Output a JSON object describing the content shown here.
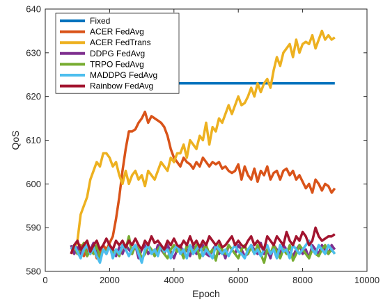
{
  "chart_data": {
    "type": "line",
    "xlabel": "Epoch",
    "ylabel": "QoS",
    "xlim": [
      0,
      10000
    ],
    "ylim": [
      580,
      640
    ],
    "xticks": [
      0,
      2000,
      4000,
      6000,
      8000,
      10000
    ],
    "yticks": [
      580,
      590,
      600,
      610,
      620,
      630,
      640
    ],
    "grid": false,
    "legend_position": "top-left",
    "series": [
      {
        "name": "Fixed",
        "color": "#0072BD",
        "x": [
          4000,
          9000
        ],
        "y": [
          623,
          623
        ]
      },
      {
        "name": "ACER FedAvg",
        "color": "#D95319",
        "x": [
          800,
          900,
          1000,
          1100,
          1200,
          1300,
          1400,
          1500,
          1600,
          1700,
          1800,
          1900,
          2000,
          2100,
          2200,
          2300,
          2400,
          2500,
          2600,
          2700,
          2800,
          2900,
          3000,
          3100,
          3200,
          3300,
          3400,
          3500,
          3600,
          3700,
          3800,
          3900,
          4000,
          4100,
          4200,
          4300,
          4400,
          4500,
          4600,
          4700,
          4800,
          4900,
          5000,
          5100,
          5200,
          5300,
          5400,
          5500,
          5600,
          5700,
          5800,
          5900,
          6000,
          6100,
          6200,
          6300,
          6400,
          6500,
          6600,
          6700,
          6800,
          6900,
          7000,
          7100,
          7200,
          7300,
          7400,
          7500,
          7600,
          7700,
          7800,
          7900,
          8000,
          8100,
          8200,
          8300,
          8400,
          8500,
          8600,
          8700,
          8800,
          8900,
          9000
        ],
        "y": [
          584,
          585.5,
          584,
          586,
          583.5,
          585,
          584,
          586,
          583,
          584.5,
          586,
          585,
          586.5,
          588,
          592,
          597,
          603,
          608,
          612,
          612,
          612.5,
          614,
          615,
          616.5,
          614,
          615.5,
          615,
          614.5,
          614,
          613,
          611,
          608,
          606,
          605,
          604,
          606,
          605,
          604.5,
          603.5,
          605,
          604,
          606,
          605,
          604,
          605,
          604.5,
          605,
          603.5,
          604,
          603,
          602.5,
          603,
          604.5,
          601,
          604,
          602,
          601,
          603.5,
          600.5,
          603,
          602,
          604,
          601,
          602.5,
          603,
          601,
          603,
          603.5,
          602,
          603,
          601,
          602,
          600.5,
          599,
          600,
          598,
          601,
          600,
          598.5,
          600,
          599.5,
          598,
          599
        ]
      },
      {
        "name": "ACER FedTrans",
        "color": "#EDB120",
        "x": [
          800,
          900,
          1000,
          1100,
          1200,
          1300,
          1400,
          1500,
          1600,
          1700,
          1800,
          1900,
          2000,
          2100,
          2200,
          2300,
          2400,
          2500,
          2600,
          2700,
          2800,
          2900,
          3000,
          3100,
          3200,
          3300,
          3400,
          3500,
          3600,
          3700,
          3800,
          3900,
          4000,
          4100,
          4200,
          4300,
          4400,
          4500,
          4600,
          4700,
          4800,
          4900,
          5000,
          5100,
          5200,
          5300,
          5400,
          5500,
          5600,
          5700,
          5800,
          5900,
          6000,
          6100,
          6200,
          6300,
          6400,
          6500,
          6600,
          6700,
          6800,
          6900,
          7000,
          7100,
          7200,
          7300,
          7400,
          7500,
          7600,
          7700,
          7800,
          7900,
          8000,
          8100,
          8200,
          8300,
          8400,
          8500,
          8600,
          8700,
          8800,
          8900,
          9000
        ],
        "y": [
          584,
          585,
          587,
          593,
          595,
          597,
          601,
          603,
          605,
          604,
          607,
          607,
          606,
          604,
          605,
          602,
          600,
          603,
          600,
          602,
          603,
          601,
          602,
          599.5,
          603,
          602,
          601,
          603,
          605,
          604,
          603,
          606,
          605,
          607,
          607,
          609,
          606,
          610,
          609,
          608,
          611,
          610,
          614,
          609,
          613,
          612,
          615,
          614,
          616,
          618,
          616,
          618,
          620,
          618,
          618.5,
          620,
          622,
          620,
          623,
          621,
          623,
          624,
          622,
          626,
          629,
          627,
          630,
          631,
          632,
          629,
          633,
          630,
          632,
          632.5,
          632,
          634,
          631,
          633,
          635,
          633,
          634,
          633,
          633.5
        ]
      },
      {
        "name": "DDPG FedAvg",
        "color": "#7E2F8E",
        "x": [
          800,
          900,
          1000,
          1100,
          1200,
          1300,
          1400,
          1500,
          1600,
          1700,
          1800,
          1900,
          2000,
          2100,
          2200,
          2300,
          2400,
          2500,
          2600,
          2700,
          2800,
          2900,
          3000,
          3100,
          3200,
          3300,
          3400,
          3500,
          3600,
          3700,
          3800,
          3900,
          4000,
          4100,
          4200,
          4300,
          4400,
          4500,
          4600,
          4700,
          4800,
          4900,
          5000,
          5100,
          5200,
          5300,
          5400,
          5500,
          5600,
          5700,
          5800,
          5900,
          6000,
          6100,
          6200,
          6300,
          6400,
          6500,
          6600,
          6700,
          6800,
          6900,
          7000,
          7100,
          7200,
          7300,
          7400,
          7500,
          7600,
          7700,
          7800,
          7900,
          8000,
          8100,
          8200,
          8300,
          8400,
          8500,
          8600,
          8700,
          8800,
          8900,
          9000
        ],
        "y": [
          586,
          584,
          585.5,
          584,
          586,
          583.5,
          585,
          586.5,
          584,
          583,
          585,
          584,
          586,
          585,
          583.5,
          585.5,
          584,
          586,
          585,
          584,
          586,
          583,
          585,
          586,
          584,
          585,
          583.5,
          586,
          585,
          584,
          586,
          584.5,
          583,
          585,
          586,
          584,
          585,
          583.5,
          586,
          584,
          585,
          586,
          584,
          583.5,
          585,
          586,
          584,
          585,
          583,
          586,
          585,
          584,
          586,
          585,
          583.5,
          584,
          586,
          585,
          584,
          586.5,
          584,
          585,
          583,
          586,
          585,
          584,
          586,
          585,
          584,
          583.5,
          585,
          586,
          584,
          585,
          583,
          586,
          585,
          584,
          586,
          585,
          584,
          586,
          585
        ]
      },
      {
        "name": "TRPO FedAvg",
        "color": "#77AC30",
        "x": [
          800,
          900,
          1000,
          1100,
          1200,
          1300,
          1400,
          1500,
          1600,
          1700,
          1800,
          1900,
          2000,
          2100,
          2200,
          2300,
          2400,
          2500,
          2600,
          2700,
          2800,
          2900,
          3000,
          3100,
          3200,
          3300,
          3400,
          3500,
          3600,
          3700,
          3800,
          3900,
          4000,
          4100,
          4200,
          4300,
          4400,
          4500,
          4600,
          4700,
          4800,
          4900,
          5000,
          5100,
          5200,
          5300,
          5400,
          5500,
          5600,
          5700,
          5800,
          5900,
          6000,
          6100,
          6200,
          6300,
          6400,
          6500,
          6600,
          6700,
          6800,
          6900,
          7000,
          7100,
          7200,
          7300,
          7400,
          7500,
          7600,
          7700,
          7800,
          7900,
          8000,
          8100,
          8200,
          8300,
          8400,
          8500,
          8600,
          8700,
          8800,
          8900,
          9000
        ],
        "y": [
          585,
          586,
          584,
          585,
          586.5,
          583.5,
          585,
          584,
          586,
          583,
          585,
          584.5,
          586,
          584,
          585,
          583.5,
          586,
          585,
          588,
          584,
          586,
          585,
          583,
          584,
          586,
          585,
          583.5,
          585,
          586,
          584,
          583,
          585,
          586,
          584.5,
          585,
          583,
          586,
          585,
          584,
          586,
          583,
          585,
          586,
          584,
          585,
          582.5,
          586,
          585,
          584,
          586,
          585,
          584,
          583,
          585,
          586,
          584,
          585.5,
          584,
          586,
          584,
          582,
          585,
          584,
          586,
          584.5,
          583,
          585,
          584,
          586,
          582.5,
          584,
          586,
          585,
          584,
          583,
          585,
          584,
          583.5,
          585,
          586,
          584,
          585,
          584
        ]
      },
      {
        "name": "MADDPG FedAvg",
        "color": "#4DBEEE",
        "x": [
          800,
          900,
          1000,
          1100,
          1200,
          1300,
          1400,
          1500,
          1600,
          1700,
          1800,
          1900,
          2000,
          2100,
          2200,
          2300,
          2400,
          2500,
          2600,
          2700,
          2800,
          2900,
          3000,
          3100,
          3200,
          3300,
          3400,
          3500,
          3600,
          3700,
          3800,
          3900,
          4000,
          4100,
          4200,
          4300,
          4400,
          4500,
          4600,
          4700,
          4800,
          4900,
          5000,
          5100,
          5200,
          5300,
          5400,
          5500,
          5600,
          5700,
          5800,
          5900,
          6000,
          6100,
          6200,
          6300,
          6400,
          6500,
          6600,
          6700,
          6800,
          6900,
          7000,
          7100,
          7200,
          7300,
          7400,
          7500,
          7600,
          7700,
          7800,
          7900,
          8000,
          8100,
          8200,
          8300,
          8400,
          8500,
          8600,
          8700,
          8800,
          8900,
          9000
        ],
        "y": [
          585,
          586,
          584.5,
          583,
          585,
          586,
          584,
          585.5,
          583.5,
          582,
          585,
          584,
          586,
          583,
          585,
          584,
          586,
          585,
          583.5,
          585,
          586,
          584,
          582,
          585,
          586,
          584,
          585,
          583.5,
          586,
          584.5,
          585,
          583,
          585,
          586,
          584,
          585,
          583,
          586,
          584,
          585,
          586,
          583.5,
          585,
          584,
          583,
          586,
          585,
          584,
          585,
          583.5,
          585,
          586,
          584.5,
          584,
          583,
          585,
          586,
          584,
          585,
          583.5,
          585,
          586,
          584,
          585,
          583,
          586,
          584.5,
          585,
          583,
          586,
          585,
          584,
          585,
          586,
          587,
          585,
          584,
          586,
          585,
          584,
          586,
          585,
          584
        ]
      },
      {
        "name": "Rainbow FedAvg",
        "color": "#A2142F",
        "x": [
          800,
          900,
          1000,
          1100,
          1200,
          1300,
          1400,
          1500,
          1600,
          1700,
          1800,
          1900,
          2000,
          2100,
          2200,
          2300,
          2400,
          2500,
          2600,
          2700,
          2800,
          2900,
          3000,
          3100,
          3200,
          3300,
          3400,
          3500,
          3600,
          3700,
          3800,
          3900,
          4000,
          4100,
          4200,
          4300,
          4400,
          4500,
          4600,
          4700,
          4800,
          4900,
          5000,
          5100,
          5200,
          5300,
          5400,
          5500,
          5600,
          5700,
          5800,
          5900,
          6000,
          6100,
          6200,
          6300,
          6400,
          6500,
          6600,
          6700,
          6800,
          6900,
          7000,
          7100,
          7200,
          7300,
          7400,
          7500,
          7600,
          7700,
          7800,
          7900,
          8000,
          8100,
          8200,
          8300,
          8400,
          8500,
          8600,
          8700,
          8800,
          8900,
          9000
        ],
        "y": [
          584,
          586,
          587,
          585,
          586,
          587,
          584.5,
          586,
          587,
          585,
          586,
          587.5,
          586,
          585,
          587,
          586,
          587,
          585.5,
          587,
          586,
          587.5,
          586,
          585,
          587,
          586,
          588,
          586.5,
          587,
          586,
          585,
          587,
          586,
          587.5,
          586,
          585.5,
          587,
          586,
          588,
          586,
          587,
          585.5,
          587,
          586,
          588,
          587,
          586,
          587,
          585.5,
          586,
          587,
          588,
          586,
          587,
          586,
          585.5,
          587,
          588,
          586,
          587,
          586,
          585,
          588,
          587,
          586,
          588,
          587,
          586,
          589,
          587,
          586,
          588,
          587,
          589,
          588,
          586,
          587,
          590,
          588,
          587,
          587.5,
          588,
          588,
          588.5
        ]
      }
    ]
  }
}
